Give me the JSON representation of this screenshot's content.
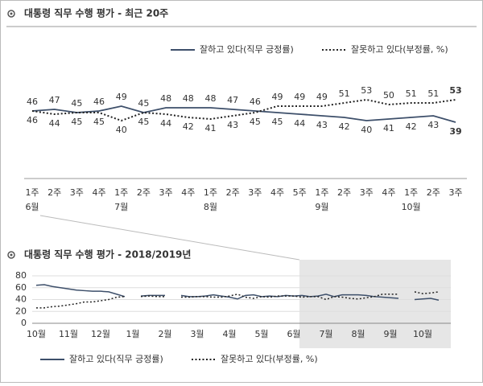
{
  "chart_data": [
    {
      "type": "line",
      "title": "대통령 직무 수행 평가 - 최근 20주",
      "categories": [
        "1주",
        "2주",
        "3주",
        "4주",
        "1주",
        "2주",
        "3주",
        "4주",
        "1주",
        "2주",
        "3주",
        "4주",
        "5주",
        "1주",
        "2주",
        "3주",
        "4주",
        "1주",
        "2주",
        "3주"
      ],
      "month_labels": [
        "6월",
        null,
        null,
        null,
        "7월",
        null,
        null,
        null,
        "8월",
        null,
        null,
        null,
        null,
        "9월",
        null,
        null,
        null,
        "10월",
        null,
        null
      ],
      "ylim": [
        30,
        70
      ],
      "series": [
        {
          "name": "잘하고 있다(직무 긍정률)",
          "color": "#3d4f6a",
          "style": "solid",
          "values": [
            46,
            47,
            45,
            46,
            49,
            45,
            48,
            48,
            48,
            47,
            46,
            45,
            44,
            43,
            42,
            40,
            41,
            42,
            43,
            39
          ]
        },
        {
          "name": "잘못하고 있다(부정률, %)",
          "color": "#222222",
          "style": "dotted",
          "values": [
            46,
            44,
            45,
            45,
            40,
            45,
            44,
            42,
            41,
            43,
            45,
            49,
            49,
            49,
            51,
            53,
            50,
            51,
            51,
            53
          ]
        }
      ]
    },
    {
      "type": "line",
      "title": "대통령 직무 수행 평가 - 2018/2019년",
      "categories": [
        "10월",
        null,
        null,
        null,
        "11월",
        null,
        null,
        null,
        "12월",
        null,
        null,
        null,
        "1월",
        null,
        null,
        null,
        "2월",
        null,
        null,
        null,
        "3월",
        null,
        null,
        null,
        "4월",
        null,
        null,
        null,
        "5월",
        null,
        null,
        null,
        "6월",
        null,
        null,
        null,
        "7월",
        null,
        null,
        null,
        "8월",
        null,
        null,
        null,
        "9월",
        null,
        null,
        null,
        "10월",
        null,
        null,
        null
      ],
      "ylim": [
        0,
        80
      ],
      "yticks": [
        0,
        20,
        40,
        60,
        80
      ],
      "grid": true,
      "series": [
        {
          "name": "잘하고 있다(직무 긍정률)",
          "color": "#3d4f6a",
          "style": "solid",
          "values": [
            64,
            65,
            62,
            60,
            58,
            56,
            55,
            54,
            54,
            53,
            49,
            45,
            null,
            46,
            47,
            47,
            47,
            null,
            47,
            45,
            45,
            46,
            48,
            46,
            44,
            41,
            47,
            48,
            45,
            46,
            45,
            47,
            46,
            47,
            45,
            46,
            49,
            45,
            48,
            48,
            48,
            47,
            45,
            44,
            43,
            42,
            null,
            40,
            41,
            42,
            39,
            null
          ]
        },
        {
          "name": "잘못하고 있다(부정률, %)",
          "color": "#222222",
          "style": "dotted",
          "values": [
            26,
            26,
            28,
            29,
            31,
            33,
            36,
            36,
            38,
            40,
            44,
            45,
            null,
            45,
            46,
            45,
            45,
            null,
            44,
            44,
            45,
            45,
            44,
            44,
            46,
            49,
            44,
            42,
            45,
            44,
            46,
            46,
            46,
            44,
            45,
            45,
            40,
            45,
            44,
            42,
            41,
            43,
            45,
            49,
            49,
            49,
            null,
            53,
            50,
            51,
            53,
            null
          ]
        }
      ]
    }
  ]
}
